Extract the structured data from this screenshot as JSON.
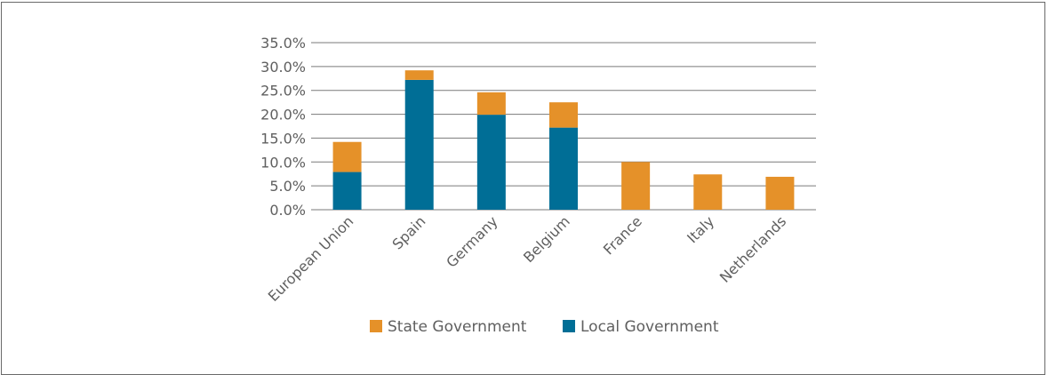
{
  "chart_data": {
    "type": "bar",
    "stacked": true,
    "title": "",
    "xlabel": "",
    "ylabel": "",
    "categories": [
      "European Union",
      "Spain",
      "Germany",
      "Belgium",
      "France",
      "Italy",
      "Netherlands"
    ],
    "series": [
      {
        "name": "Local Government",
        "color": "#006e96",
        "values": [
          7.9,
          27.2,
          19.9,
          17.2,
          0.0,
          0.0,
          0.0
        ]
      },
      {
        "name": "State Government",
        "color": "#e59129",
        "values": [
          6.3,
          2.0,
          4.7,
          5.3,
          10.0,
          7.4,
          6.9
        ]
      }
    ],
    "yticks": [
      "0.0%",
      "5.0%",
      "10.0%",
      "15.0%",
      "20.0%",
      "25.0%",
      "30.0%",
      "35.0%"
    ],
    "ylim": [
      0,
      35
    ],
    "grid": true,
    "legend": {
      "position": "bottom",
      "order": [
        "State Government",
        "Local Government"
      ]
    }
  }
}
